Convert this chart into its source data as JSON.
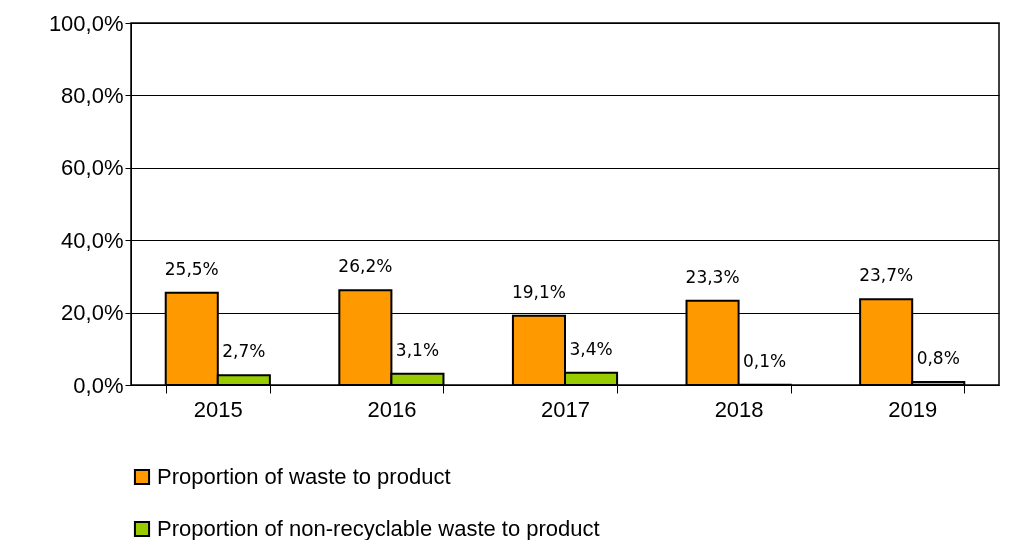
{
  "chart_data": {
    "type": "bar",
    "categories": [
      "2015",
      "2016",
      "2017",
      "2018",
      "2019"
    ],
    "series": [
      {
        "name": "Proportion of waste to product",
        "color": "#ff9900",
        "values": [
          25.5,
          26.2,
          19.1,
          23.3,
          23.7
        ],
        "value_labels": [
          "25,5%",
          "26,2%",
          "19,1%",
          "23,3%",
          "23,7%"
        ]
      },
      {
        "name": "Proportion of non-recyclable waste to product",
        "color": "#99cc00",
        "values": [
          2.7,
          3.1,
          3.4,
          0.1,
          0.8
        ],
        "value_labels": [
          "2,7%",
          "3,1%",
          "3,4%",
          "0,1%",
          "0,8%"
        ]
      }
    ],
    "ylim": [
      0,
      100
    ],
    "yticks": [
      {
        "value": 0,
        "label": "0,0%"
      },
      {
        "value": 20,
        "label": "20,0%"
      },
      {
        "value": 40,
        "label": "40,0%"
      },
      {
        "value": 60,
        "label": "60,0%"
      },
      {
        "value": 80,
        "label": "80,0%"
      },
      {
        "value": 100,
        "label": "100,0%"
      }
    ],
    "grid": "y",
    "legend": "bottom"
  }
}
